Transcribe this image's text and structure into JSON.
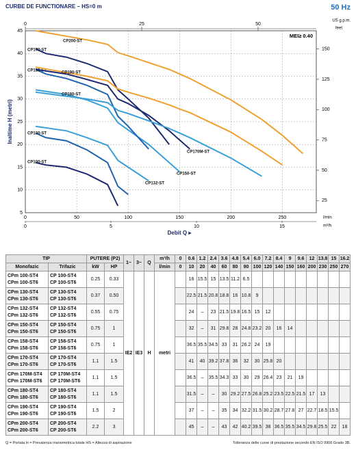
{
  "chart_data": {
    "type": "line",
    "title": "CURBE DE FUNCTIONARE – HS=0 m",
    "frequency": "50 Hz",
    "mei": "MEI≥ 0.40",
    "ylabel": "Inaltime H (metri)",
    "xlabel": "Debit Q ▸",
    "xlim": [
      0,
      283
    ],
    "xticks": [
      0,
      50,
      100,
      150,
      200,
      250
    ],
    "xunit": "l/min",
    "x2lim": [
      0,
      17
    ],
    "x2ticks": [
      0,
      5,
      10,
      15
    ],
    "x2unit": "m³/h",
    "x3lim": [
      0,
      62.5
    ],
    "x3ticks": [
      0,
      25,
      50
    ],
    "x3unit": "US g.p.m.",
    "ylim": [
      5,
      45
    ],
    "yticks": [
      5,
      10,
      15,
      20,
      25,
      30,
      35,
      40,
      45
    ],
    "y2lim": [
      15,
      165
    ],
    "y2ticks": [
      25,
      50,
      75,
      100,
      125,
      150
    ],
    "y2unit": "feet",
    "grid": true,
    "series": [
      {
        "name": "CP100-ST",
        "color": "#1c2a6e",
        "x": [
          10,
          20,
          40,
          60,
          80,
          90
        ],
        "values": [
          16,
          15.5,
          15,
          13.5,
          11.2,
          6.5
        ]
      },
      {
        "name": "CP130-ST",
        "color": "#1f63ad",
        "x": [
          10,
          20,
          40,
          60,
          80,
          90,
          100
        ],
        "values": [
          22.5,
          21.5,
          20.8,
          18.8,
          16,
          10.8,
          9
        ]
      },
      {
        "name": "CP132-ST",
        "color": "#3a9fd8",
        "x": [
          10,
          40,
          60,
          80,
          90,
          100,
          120
        ],
        "values": [
          24,
          23,
          21.5,
          19.8,
          16.5,
          15,
          12
        ]
      },
      {
        "name": "CP150-ST",
        "color": "#3a9fd8",
        "x": [
          10,
          40,
          60,
          80,
          90,
          100,
          120,
          140,
          150
        ],
        "values": [
          32,
          31,
          29.8,
          28,
          24.8,
          23.2,
          20,
          16,
          14
        ]
      },
      {
        "name": "CP158-ST",
        "color": "#1f63ad",
        "x": [
          10,
          20,
          40,
          60,
          80,
          90,
          100,
          120
        ],
        "values": [
          36.5,
          35.5,
          34.5,
          33,
          31,
          26.2,
          24,
          19
        ]
      },
      {
        "name": "CP170-ST",
        "color": "#1c2a6e",
        "x": [
          10,
          20,
          40,
          60,
          80,
          90,
          100,
          120,
          140
        ],
        "values": [
          41,
          40,
          39.2,
          37.8,
          36,
          32,
          30,
          25.8,
          20
        ]
      },
      {
        "name": "CP170M-ST",
        "color": "#1c2a6e",
        "x": [
          10,
          40,
          60,
          80,
          90,
          100,
          120,
          140,
          150,
          160
        ],
        "values": [
          36.5,
          35.5,
          34.3,
          33,
          30,
          29,
          26.4,
          23,
          21,
          19
        ]
      },
      {
        "name": "CP180-ST",
        "color": "#3a9fd8",
        "x": [
          10,
          60,
          80,
          90,
          100,
          120,
          140,
          150,
          160,
          200,
          230
        ],
        "values": [
          31.5,
          30,
          29.2,
          27.5,
          26.8,
          25.2,
          23.5,
          22.5,
          21.5,
          17,
          13
        ]
      },
      {
        "name": "CP190-ST",
        "color": "#f0a030",
        "x": [
          10,
          60,
          80,
          90,
          100,
          120,
          140,
          150,
          160,
          200,
          230,
          250
        ],
        "values": [
          37,
          35,
          34,
          32.2,
          31.5,
          30.2,
          28.7,
          27.8,
          27,
          22.7,
          18.5,
          15.5
        ]
      },
      {
        "name": "CP200-ST",
        "color": "#f0a030",
        "x": [
          10,
          60,
          80,
          90,
          100,
          120,
          140,
          150,
          160,
          200,
          230,
          250,
          270
        ],
        "values": [
          45,
          43,
          42,
          40.2,
          39.5,
          38,
          36.5,
          35.5,
          34.5,
          29.8,
          25.5,
          22,
          18
        ]
      }
    ]
  },
  "table": {
    "header": {
      "tip": "TIP",
      "putere": "PUTERE (P2)",
      "phase1": "1~",
      "phase3": "3~",
      "q": "Q",
      "unit_m3h": "m³/h",
      "monofazic": "Monofazic",
      "trifazic": "Trifazic",
      "kw": "kW",
      "hp": "HP",
      "unit_lmin": "l/min",
      "m3h": [
        "0",
        "0.6",
        "1.2",
        "2.4",
        "3.6",
        "4.8",
        "5.4",
        "6.0",
        "7.2",
        "8.4",
        "9",
        "9.6",
        "12",
        "13.8",
        "15",
        "16.2"
      ],
      "lmin": [
        "0",
        "10",
        "20",
        "40",
        "60",
        "80",
        "90",
        "100",
        "120",
        "140",
        "150",
        "160",
        "200",
        "230",
        "250",
        "270"
      ]
    },
    "ie2": "IE2",
    "ie3": "IE3",
    "h": "H",
    "metri": "metri",
    "rows": [
      {
        "monofazic": [
          "CPm 100-ST4",
          "CPm 100-ST6"
        ],
        "trifazic": [
          "CP 100-ST4",
          "CP 100-ST6"
        ],
        "kw": "0.25",
        "hp": "0.33",
        "h": [
          null,
          "16",
          "15.5",
          "15",
          "13.5",
          "11.2",
          "6.5",
          null,
          null,
          null,
          null,
          null,
          null,
          null,
          null,
          null
        ]
      },
      {
        "monofazic": [
          "CPm 130-ST4",
          "CPm 130-ST6"
        ],
        "trifazic": [
          "CP 130-ST4",
          "CP 130-ST6"
        ],
        "kw": "0.37",
        "hp": "0.50",
        "h": [
          null,
          "22.5",
          "21.5",
          "20.8",
          "18.8",
          "16",
          "10.8",
          "9",
          null,
          null,
          null,
          null,
          null,
          null,
          null,
          null
        ]
      },
      {
        "monofazic": [
          "CPm 132-ST4",
          "CPm 132-ST6"
        ],
        "trifazic": [
          "CP 132-ST4",
          "CP 132-ST6"
        ],
        "kw": "0.55",
        "hp": "0.75",
        "h": [
          null,
          "24",
          "–",
          "23",
          "21.5",
          "19.8",
          "16.5",
          "15",
          "12",
          null,
          null,
          null,
          null,
          null,
          null,
          null
        ]
      },
      {
        "monofazic": [
          "CPm 150-ST4",
          "CPm 150-ST6"
        ],
        "trifazic": [
          "CP 150-ST4",
          "CP 150-ST6"
        ],
        "kw": "0.75",
        "hp": "1",
        "h": [
          null,
          "32",
          "–",
          "31",
          "29.8",
          "28",
          "24.8",
          "23.2",
          "20",
          "16",
          "14",
          null,
          null,
          null,
          null,
          null
        ]
      },
      {
        "monofazic": [
          "CPm 158-ST4",
          "CPm 158-ST6"
        ],
        "trifazic": [
          "CP 158-ST4",
          "CP 158-ST6"
        ],
        "kw": "0.75",
        "hp": "1",
        "h": [
          null,
          "36.5",
          "35.5",
          "34.5",
          "33",
          "31",
          "26.2",
          "24",
          "19",
          null,
          null,
          null,
          null,
          null,
          null,
          null
        ]
      },
      {
        "monofazic": [
          "CPm 170-ST4",
          "CPm 170-ST6"
        ],
        "trifazic": [
          "CP 170-ST4",
          "CP 170-ST6"
        ],
        "kw": "1.1",
        "hp": "1.5",
        "h": [
          null,
          "41",
          "40",
          "39.2",
          "37.8",
          "36",
          "32",
          "30",
          "25.8",
          "20",
          null,
          null,
          null,
          null,
          null,
          null
        ]
      },
      {
        "monofazic": [
          "CPm 170M-ST4",
          "CPm 170M-ST6"
        ],
        "trifazic": [
          "CP 170M-ST4",
          "CP 170M-ST6"
        ],
        "kw": "1.1",
        "hp": "1.5",
        "h": [
          null,
          "36.5",
          "–",
          "35.5",
          "34.3",
          "33",
          "30",
          "29",
          "26.4",
          "23",
          "21",
          "19",
          null,
          null,
          null,
          null
        ]
      },
      {
        "monofazic": [
          "CPm 180-ST4",
          "CPm 180-ST6"
        ],
        "trifazic": [
          "CP 180-ST4",
          "CP 180-ST6"
        ],
        "kw": "1.1",
        "hp": "1.5",
        "h": [
          null,
          "31.5",
          "–",
          "–",
          "30",
          "29.2",
          "27.5",
          "26.8",
          "25.2",
          "23.5",
          "22.5",
          "21.5",
          "17",
          "13",
          null,
          null
        ]
      },
      {
        "monofazic": [
          "CPm 190-ST4",
          "CPm 190-ST6"
        ],
        "trifazic": [
          "CP 190-ST4",
          "CP 190-ST6"
        ],
        "kw": "1.5",
        "hp": "2",
        "h": [
          null,
          "37",
          "–",
          "–",
          "35",
          "34",
          "32.2",
          "31.5",
          "30.2",
          "28.7",
          "27.8",
          "27",
          "22.7",
          "18.5",
          "15.5",
          null
        ]
      },
      {
        "monofazic": [
          "CPm 200-ST4",
          "CPm 200-ST6"
        ],
        "trifazic": [
          "CP 200-ST4",
          "CP 200-ST6"
        ],
        "kw": "2.2",
        "hp": "3",
        "h": [
          null,
          "45",
          "–",
          "–",
          "43",
          "42",
          "40.2",
          "39.5",
          "38",
          "36.5",
          "35.5",
          "34.5",
          "29.8",
          "25.5",
          "22",
          "18"
        ]
      }
    ]
  },
  "footer": {
    "left": "Q = Portata   H = Prevalenza manometrica totale   HS = Altezza di aspirazione",
    "right": "Tolleranza delle curve di prestazione secondo EN ISO 9906 Grado 3B."
  }
}
